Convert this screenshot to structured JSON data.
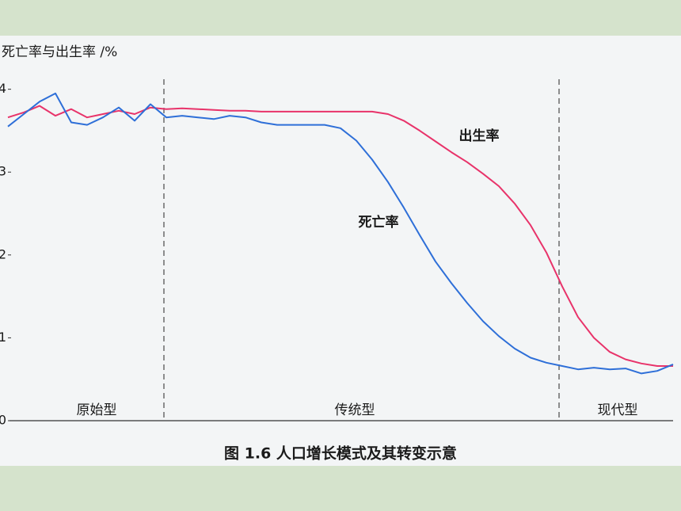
{
  "chart_data": {
    "type": "line",
    "ylabel": "死亡率与出生率 /%",
    "caption": "图 1.6   人口增长模式及其转变示意",
    "annotations": [
      "原始型",
      "传统型",
      "现代型"
    ],
    "categories": [
      null,
      null,
      null,
      null,
      null,
      null,
      null,
      null,
      null,
      null,
      null,
      null,
      null,
      null,
      null,
      null,
      null,
      null,
      null,
      null,
      null,
      null,
      null,
      null,
      null,
      null,
      null,
      null,
      null,
      null,
      null,
      null,
      null,
      null,
      null,
      null,
      null,
      null,
      null,
      null,
      null,
      null,
      null
    ],
    "ylim": [
      0,
      4.14
    ],
    "yticks": [
      0,
      1,
      2,
      3,
      4
    ],
    "series": [
      {
        "name": "出生率",
        "color": "#e8336a",
        "values": [
          3.66,
          3.72,
          3.8,
          3.68,
          3.76,
          3.66,
          3.7,
          3.74,
          3.7,
          3.78,
          3.76,
          3.77,
          3.76,
          3.75,
          3.74,
          3.74,
          3.73,
          3.73,
          3.73,
          3.73,
          3.73,
          3.73,
          3.73,
          3.73,
          3.7,
          3.62,
          3.5,
          3.37,
          3.24,
          3.12,
          2.98,
          2.83,
          2.62,
          2.36,
          2.03,
          1.62,
          1.25,
          1.0,
          0.83,
          0.74,
          0.69,
          0.66,
          0.66
        ]
      },
      {
        "name": "死亡率",
        "color": "#2e6fd8",
        "values": [
          3.55,
          3.7,
          3.85,
          3.95,
          3.6,
          3.57,
          3.66,
          3.78,
          3.62,
          3.82,
          3.66,
          3.68,
          3.66,
          3.64,
          3.68,
          3.66,
          3.6,
          3.57,
          3.57,
          3.57,
          3.57,
          3.53,
          3.38,
          3.15,
          2.88,
          2.57,
          2.24,
          1.92,
          1.66,
          1.42,
          1.2,
          1.02,
          0.87,
          0.76,
          0.7,
          0.66,
          0.62,
          0.64,
          0.62,
          0.63,
          0.57,
          0.6,
          0.68
        ]
      }
    ]
  }
}
